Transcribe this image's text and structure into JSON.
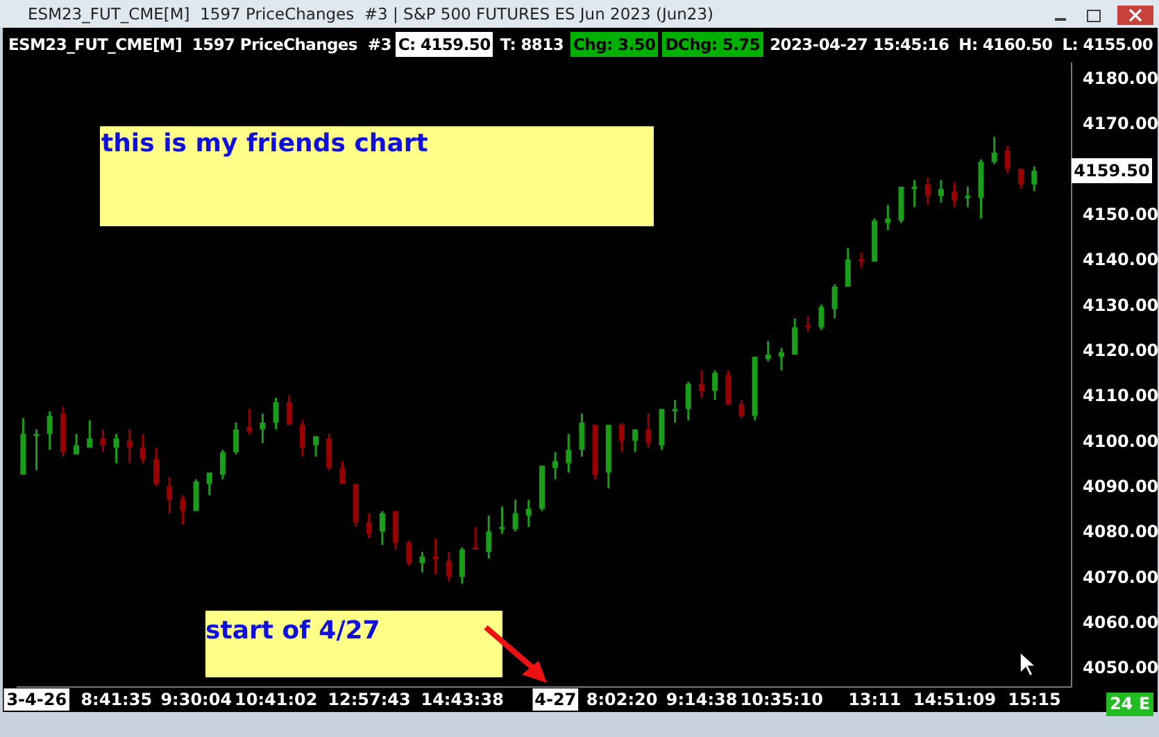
{
  "chart_data": {
    "type": "candlestick",
    "title": "ESM23_FUT_CME[M]  1597 PriceChanges  #3 | S&P 500 FUTURES ES Jun 2023 (Jun23)",
    "subtitle": "ESM23_FUT_CME[M]  1597 PriceChanges  #3",
    "categories": [
      null,
      "3-4-26",
      null,
      null,
      null,
      null,
      null,
      "8:41:35",
      null,
      null,
      null,
      null,
      null,
      "9:30:04",
      null,
      null,
      null,
      null,
      null,
      "10:41:02",
      null,
      null,
      null,
      null,
      null,
      null,
      "12:57:43",
      null,
      null,
      null,
      null,
      null,
      null,
      "14:43:38",
      null,
      null,
      null,
      null,
      null,
      null,
      "4-27",
      null,
      null,
      null,
      null,
      "8:02:20",
      null,
      null,
      null,
      null,
      null,
      "9:14:38",
      null,
      null,
      null,
      null,
      null,
      "10:35:10",
      null,
      null,
      null,
      null,
      null,
      null,
      "13:11",
      null,
      null,
      null,
      null,
      null,
      "14:51:09",
      null,
      null,
      null,
      null,
      null,
      "15:15"
    ],
    "ohlc": [
      [
        4092.5,
        4105,
        4092.5,
        4101.5
      ],
      [
        4101,
        4102.5,
        4093.5,
        4101.5
      ],
      [
        4101.5,
        4106.5,
        4098,
        4105.5
      ],
      [
        4106,
        4107.5,
        4096.5,
        4097.5
      ],
      [
        4097,
        4101.5,
        4097,
        4099
      ],
      [
        4098.5,
        4104.5,
        4098.5,
        4100.5
      ],
      [
        4100.5,
        4102.5,
        4097.5,
        4099
      ],
      [
        4098.5,
        4101.5,
        4095,
        4100.5
      ],
      [
        4100,
        4102.5,
        4095,
        4098.5
      ],
      [
        4098.5,
        4101.5,
        4095,
        4096
      ],
      [
        4096,
        4098.5,
        4090,
        4090.5
      ],
      [
        4090,
        4092,
        4084,
        4087
      ],
      [
        4087,
        4088,
        4081.5,
        4084.5
      ],
      [
        4084.5,
        4091.5,
        4084.5,
        4091
      ],
      [
        4090.5,
        4093,
        4088,
        4093
      ],
      [
        4092.5,
        4098,
        4091.5,
        4097.5
      ],
      [
        4097.5,
        4104,
        4097,
        4102.5
      ],
      [
        4103,
        4107,
        4101.5,
        4102
      ],
      [
        4102.5,
        4106,
        4099.5,
        4104
      ],
      [
        4104,
        4109.5,
        4102.5,
        4108.5
      ],
      [
        4108.5,
        4110,
        4103.5,
        4103.5
      ],
      [
        4103.5,
        4104.5,
        4096.5,
        4098.5
      ],
      [
        4099,
        4101,
        4096.5,
        4101
      ],
      [
        4100.5,
        4101.5,
        4093.5,
        4094
      ],
      [
        4094,
        4095.5,
        4090.5,
        4090.5
      ],
      [
        4090.5,
        4090.5,
        4081,
        4082
      ],
      [
        4082,
        4084,
        4078.5,
        4079.5
      ],
      [
        4080,
        4084.5,
        4077,
        4084
      ],
      [
        4084.5,
        4084.5,
        4076,
        4077.5
      ],
      [
        4077.5,
        4078,
        4072.5,
        4073
      ],
      [
        4073,
        4075.5,
        4071,
        4074.5
      ],
      [
        4074.5,
        4078.5,
        4070.5,
        4074
      ],
      [
        4073.5,
        4075.5,
        4069,
        4070
      ],
      [
        4070,
        4076.5,
        4068.5,
        4076
      ],
      [
        4076.5,
        4081,
        4076,
        4076
      ],
      [
        4075.5,
        4083.5,
        4074,
        4080
      ],
      [
        4080.5,
        4085.5,
        4079.5,
        4081
      ],
      [
        4080.5,
        4087,
        4080,
        4084
      ],
      [
        4083.5,
        4087,
        4081,
        4085
      ],
      [
        4085,
        4094.5,
        4084.5,
        4094.5
      ],
      [
        4094,
        4097.5,
        4091.5,
        4095.5
      ],
      [
        4095,
        4101.5,
        4093,
        4098
      ],
      [
        4098,
        4106,
        4096.5,
        4104
      ],
      [
        4103.5,
        4103.5,
        4091.5,
        4092.5
      ],
      [
        4093,
        4103.5,
        4089.5,
        4103.5
      ],
      [
        4103.5,
        4104,
        4097.5,
        4100
      ],
      [
        4100,
        4102.5,
        4097.5,
        4102.5
      ],
      [
        4102.5,
        4106,
        4098.5,
        4099.5
      ],
      [
        4099,
        4107,
        4098,
        4107
      ],
      [
        4106.5,
        4109,
        4104,
        4107
      ],
      [
        4107,
        4113,
        4104.5,
        4112.5
      ],
      [
        4112.5,
        4115.5,
        4109.5,
        4111
      ],
      [
        4111,
        4115.5,
        4109,
        4115
      ],
      [
        4114.5,
        4115.5,
        4108,
        4108
      ],
      [
        4108,
        4109,
        4105,
        4105.5
      ],
      [
        4105.5,
        4118.5,
        4104.5,
        4118.5
      ],
      [
        4118,
        4122,
        4117.5,
        4119
      ],
      [
        4118.5,
        4120.5,
        4115.5,
        4119.5
      ],
      [
        4119,
        4127,
        4119,
        4125
      ],
      [
        4125.5,
        4127.5,
        4124,
        4125
      ],
      [
        4125,
        4130,
        4124.5,
        4129.5
      ],
      [
        4129,
        4134.5,
        4127,
        4134
      ],
      [
        4134,
        4142.5,
        4134,
        4140
      ],
      [
        4140,
        4141.5,
        4138,
        4139.5
      ],
      [
        4139.5,
        4149,
        4139.5,
        4148.5
      ],
      [
        4148,
        4152,
        4146.5,
        4149
      ],
      [
        4148.5,
        4156,
        4148,
        4156
      ],
      [
        4155.5,
        4157.5,
        4151.5,
        4156
      ],
      [
        4156.5,
        4158,
        4152,
        4154
      ],
      [
        4154,
        4157.5,
        4152.5,
        4155.5
      ],
      [
        4155,
        4157,
        4151.5,
        4153
      ],
      [
        4153.5,
        4156,
        4151.5,
        4154
      ],
      [
        4153.5,
        4162,
        4149,
        4161.5
      ],
      [
        4161.5,
        4167,
        4161,
        4163.5
      ],
      [
        4164,
        4165,
        4159,
        4160
      ],
      [
        4160,
        4160,
        4155.5,
        4156.5
      ],
      [
        4156.5,
        4160.5,
        4155,
        4159.5
      ]
    ],
    "colors": [
      "#1a9e1a",
      "#1a9e1a",
      "#1a9e1a",
      "#990000",
      "#1a9e1a",
      "#1a9e1a",
      "#990000",
      "#1a9e1a",
      "#990000",
      "#990000",
      "#990000",
      "#990000",
      "#990000",
      "#1a9e1a",
      "#1a9e1a",
      "#1a9e1a",
      "#1a9e1a",
      "#990000",
      "#1a9e1a",
      "#1a9e1a",
      "#990000",
      "#990000",
      "#1a9e1a",
      "#990000",
      "#990000",
      "#990000",
      "#990000",
      "#1a9e1a",
      "#990000",
      "#990000",
      "#1a9e1a",
      "#990000",
      "#990000",
      "#1a9e1a",
      "#990000",
      "#1a9e1a",
      "#1a9e1a",
      "#1a9e1a",
      "#1a9e1a",
      "#1a9e1a",
      "#1a9e1a",
      "#1a9e1a",
      "#1a9e1a",
      "#990000",
      "#1a9e1a",
      "#990000",
      "#1a9e1a",
      "#990000",
      "#1a9e1a",
      "#1a9e1a",
      "#1a9e1a",
      "#990000",
      "#1a9e1a",
      "#990000",
      "#990000",
      "#1a9e1a",
      "#1a9e1a",
      "#1a9e1a",
      "#1a9e1a",
      "#990000",
      "#1a9e1a",
      "#1a9e1a",
      "#1a9e1a",
      "#990000",
      "#1a9e1a",
      "#1a9e1a",
      "#1a9e1a",
      "#1a9e1a",
      "#990000",
      "#1a9e1a",
      "#990000",
      "#1a9e1a",
      "#1a9e1a",
      "#1a9e1a",
      "#990000",
      "#990000",
      "#1a9e1a"
    ],
    "ylim": [
      4045.7,
      4183.4
    ],
    "yticks": [
      {
        "value": 4050,
        "label": "4050.00"
      },
      {
        "value": 4060,
        "label": "4060.00"
      },
      {
        "value": 4070,
        "label": "4070.00"
      },
      {
        "value": 4080,
        "label": "4080.00"
      },
      {
        "value": 4090,
        "label": "4090.00"
      },
      {
        "value": 4100,
        "label": "4100.00"
      },
      {
        "value": 4110,
        "label": "4110.00"
      },
      {
        "value": 4120,
        "label": "4120.00"
      },
      {
        "value": 4130,
        "label": "4130.00"
      },
      {
        "value": 4140,
        "label": "4140.00"
      },
      {
        "value": 4150,
        "label": "4150.00"
      },
      {
        "value": 4170,
        "label": "4170.00"
      },
      {
        "value": 4180,
        "label": "4180.00"
      }
    ],
    "annotations": [
      "C: 4159.50",
      "T: 8813",
      "Chg: 3.50",
      "DChg: 5.75",
      "2023-04-27 15:45:16",
      "H: 4160.50",
      "L: 4155.00",
      "this is my friends chart",
      "start of 4/27",
      "4159.50",
      "24 E"
    ]
  }
}
